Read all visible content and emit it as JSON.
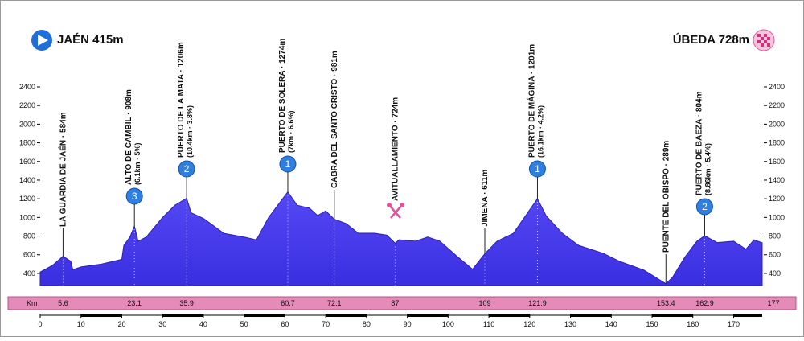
{
  "chart_data": {
    "type": "area",
    "color": "#4535ee",
    "start": "JAÉN 415m",
    "finish": "ÚBEDA 728m",
    "km_label": "Km",
    "xlim": [
      0,
      177
    ],
    "ylim": [
      270,
      2500
    ],
    "xticks": [
      0,
      10,
      20,
      30,
      40,
      50,
      60,
      70,
      80,
      90,
      100,
      110,
      120,
      130,
      140,
      150,
      160,
      170
    ],
    "yticks": [
      400,
      600,
      800,
      1000,
      1200,
      1400,
      1600,
      1800,
      2000,
      2200,
      2400
    ],
    "x": [
      0,
      3,
      5.6,
      7.5,
      8,
      10,
      15,
      20,
      20.5,
      22,
      23.1,
      24,
      26,
      30,
      33,
      35.9,
      37,
      40,
      45,
      50,
      53,
      56,
      60.7,
      63,
      66,
      68,
      70,
      72.1,
      75,
      78,
      82,
      85,
      87,
      88,
      92,
      95,
      98,
      102,
      106,
      109,
      112,
      116,
      121.9,
      124,
      128,
      132,
      138,
      142,
      148,
      153.4,
      155,
      158,
      161,
      162.9,
      166,
      170,
      173,
      175,
      177
    ],
    "values": [
      415,
      486,
      584,
      530,
      440,
      470,
      500,
      550,
      700,
      790,
      908,
      745,
      790,
      1000,
      1130,
      1206,
      1050,
      990,
      830,
      790,
      760,
      1000,
      1274,
      1130,
      1100,
      1020,
      1070,
      981,
      935,
      830,
      830,
      810,
      724,
      760,
      745,
      790,
      745,
      590,
      445,
      611,
      745,
      830,
      1201,
      1020,
      830,
      700,
      615,
      530,
      435,
      289,
      357,
      572,
      745,
      804,
      730,
      745,
      660,
      760,
      728
    ],
    "annotations": [
      {
        "label": "LA GUARDIA DE JAÉN · 584m",
        "km": 5.6
      },
      {
        "label": "ALTO DE CAMBIL · 908m",
        "sub": "(6.1km · 5%)",
        "category": "3",
        "km": 23.1
      },
      {
        "label": "PUERTO DE LA MATA · 1206m",
        "sub": "(10.4km · 3.8%)",
        "category": "2",
        "km": 35.9
      },
      {
        "label": "PUERTO DE SOLERA · 1274m",
        "sub": "(7km · 6.6%)",
        "category": "1",
        "km": 60.7
      },
      {
        "label": "CABRA DEL SANTO CRISTO · 981m",
        "km": 72.1
      },
      {
        "label": "AVITUALLAMIENTO · 724m",
        "km": 87
      },
      {
        "label": "JIMENA · 611m",
        "km": 109
      },
      {
        "label": "PUERTO DE MÁGINA · 1201m",
        "sub": "(16.1km · 4.2%)",
        "category": "1",
        "km": 121.9
      },
      {
        "label": "PUENTE DEL OBISPO · 289m",
        "km": 153.4
      },
      {
        "label": "PUERTO DE BAEZA · 804m",
        "sub": "(8.86km · 5.4%)",
        "category": "2",
        "km": 162.9
      }
    ]
  }
}
